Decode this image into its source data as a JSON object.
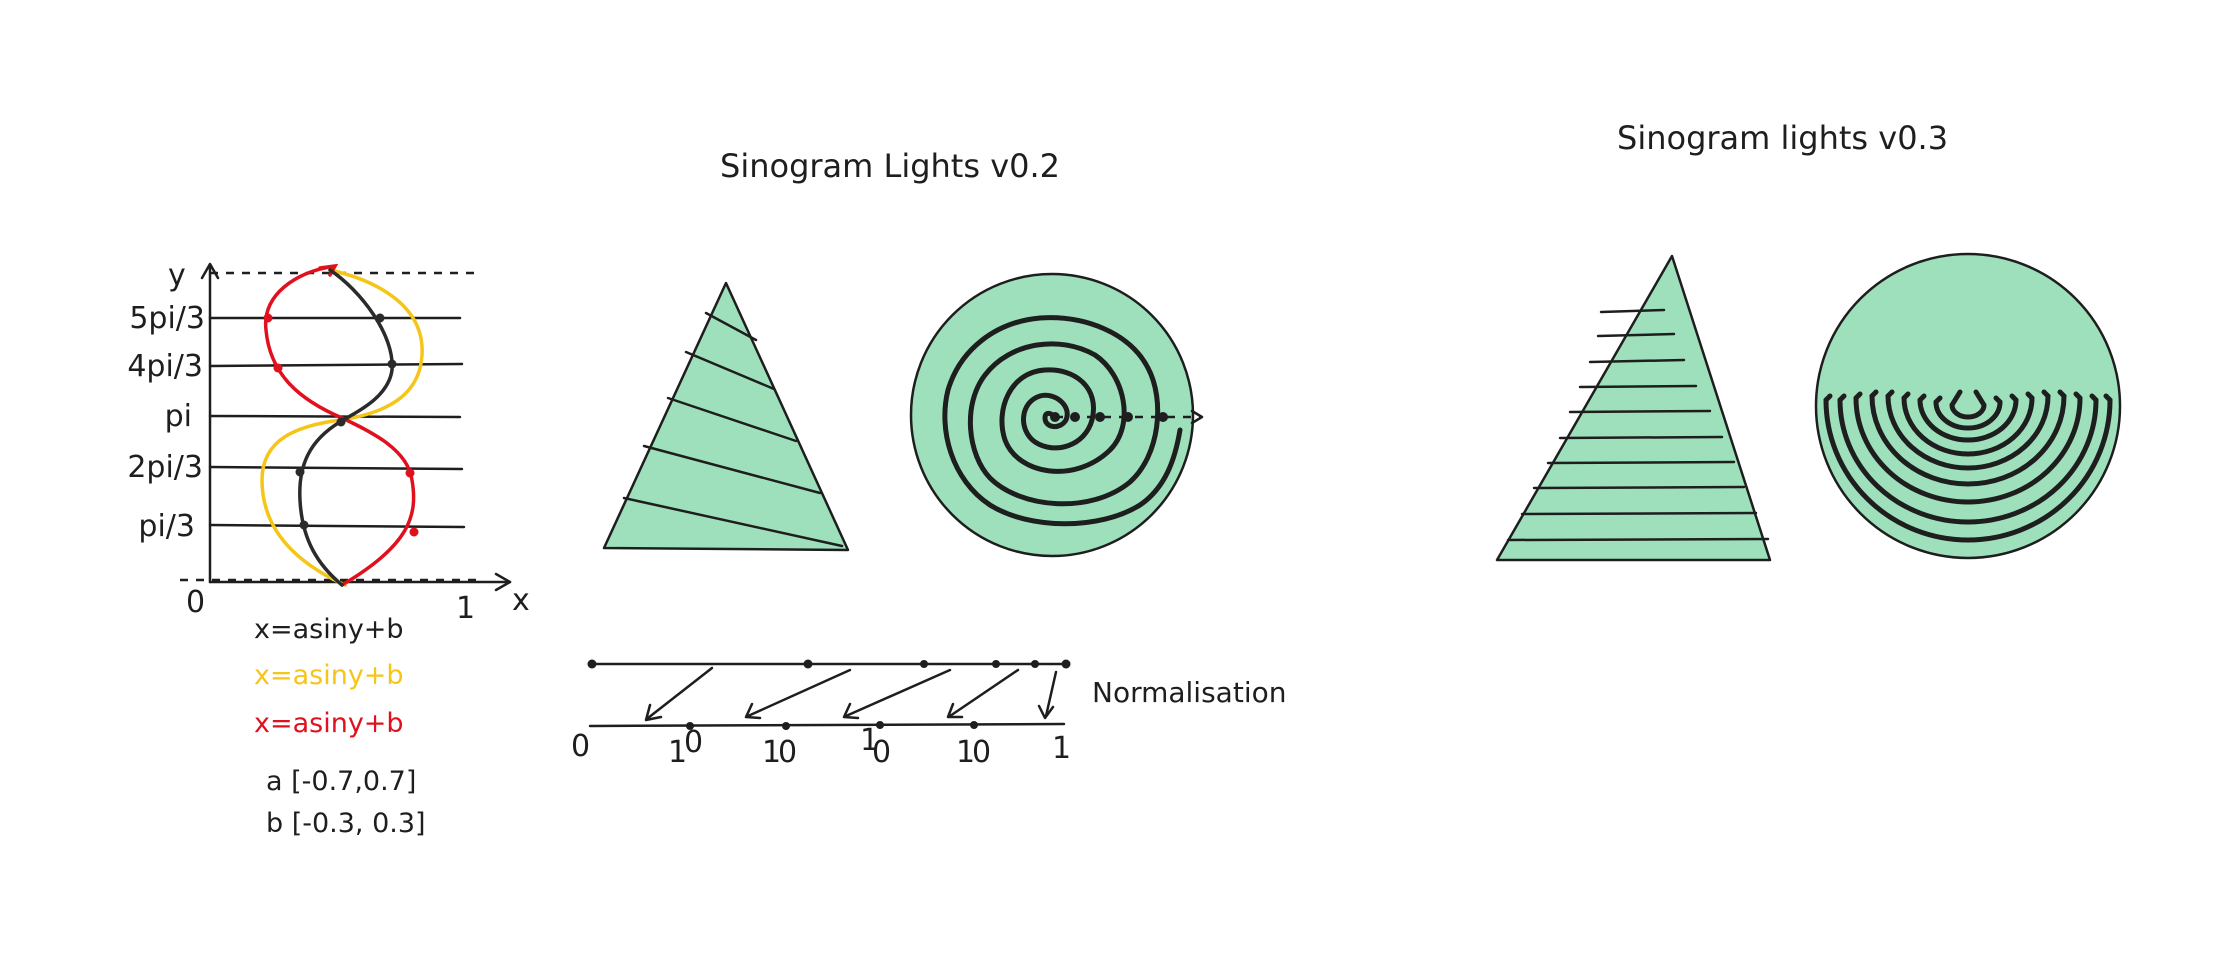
{
  "colors": {
    "ink": "#1e1e1e",
    "fill_green": "#9de0bb",
    "curve_black": "#2b2b2b",
    "curve_yellow": "#f5c518",
    "curve_red": "#e0101e"
  },
  "graph": {
    "y_axis_label": "y",
    "x_axis_label": "x",
    "origin_label": "0",
    "x_end_label": "1",
    "y_ticks": [
      "5pi/3",
      "4pi/3",
      "pi",
      "2pi/3",
      "pi/3"
    ],
    "equations": [
      {
        "text": "x=asiny+b",
        "color": "#1e1e1e"
      },
      {
        "text": "x=asiny+b",
        "color": "#f5c518"
      },
      {
        "text": "x=asiny+b",
        "color": "#e0101e"
      }
    ],
    "param_a": "a [-0.7,0.7]",
    "param_b": "b [-0.3, 0.3]"
  },
  "v02": {
    "title": "Sinogram Lights v0.2"
  },
  "v03": {
    "title": "Sinogram lights v0.3"
  },
  "normalisation": {
    "label": "Normalisation",
    "ticks": [
      "0",
      "1",
      "0",
      "1",
      "0",
      "1",
      "0",
      "1",
      "0",
      "1"
    ]
  }
}
